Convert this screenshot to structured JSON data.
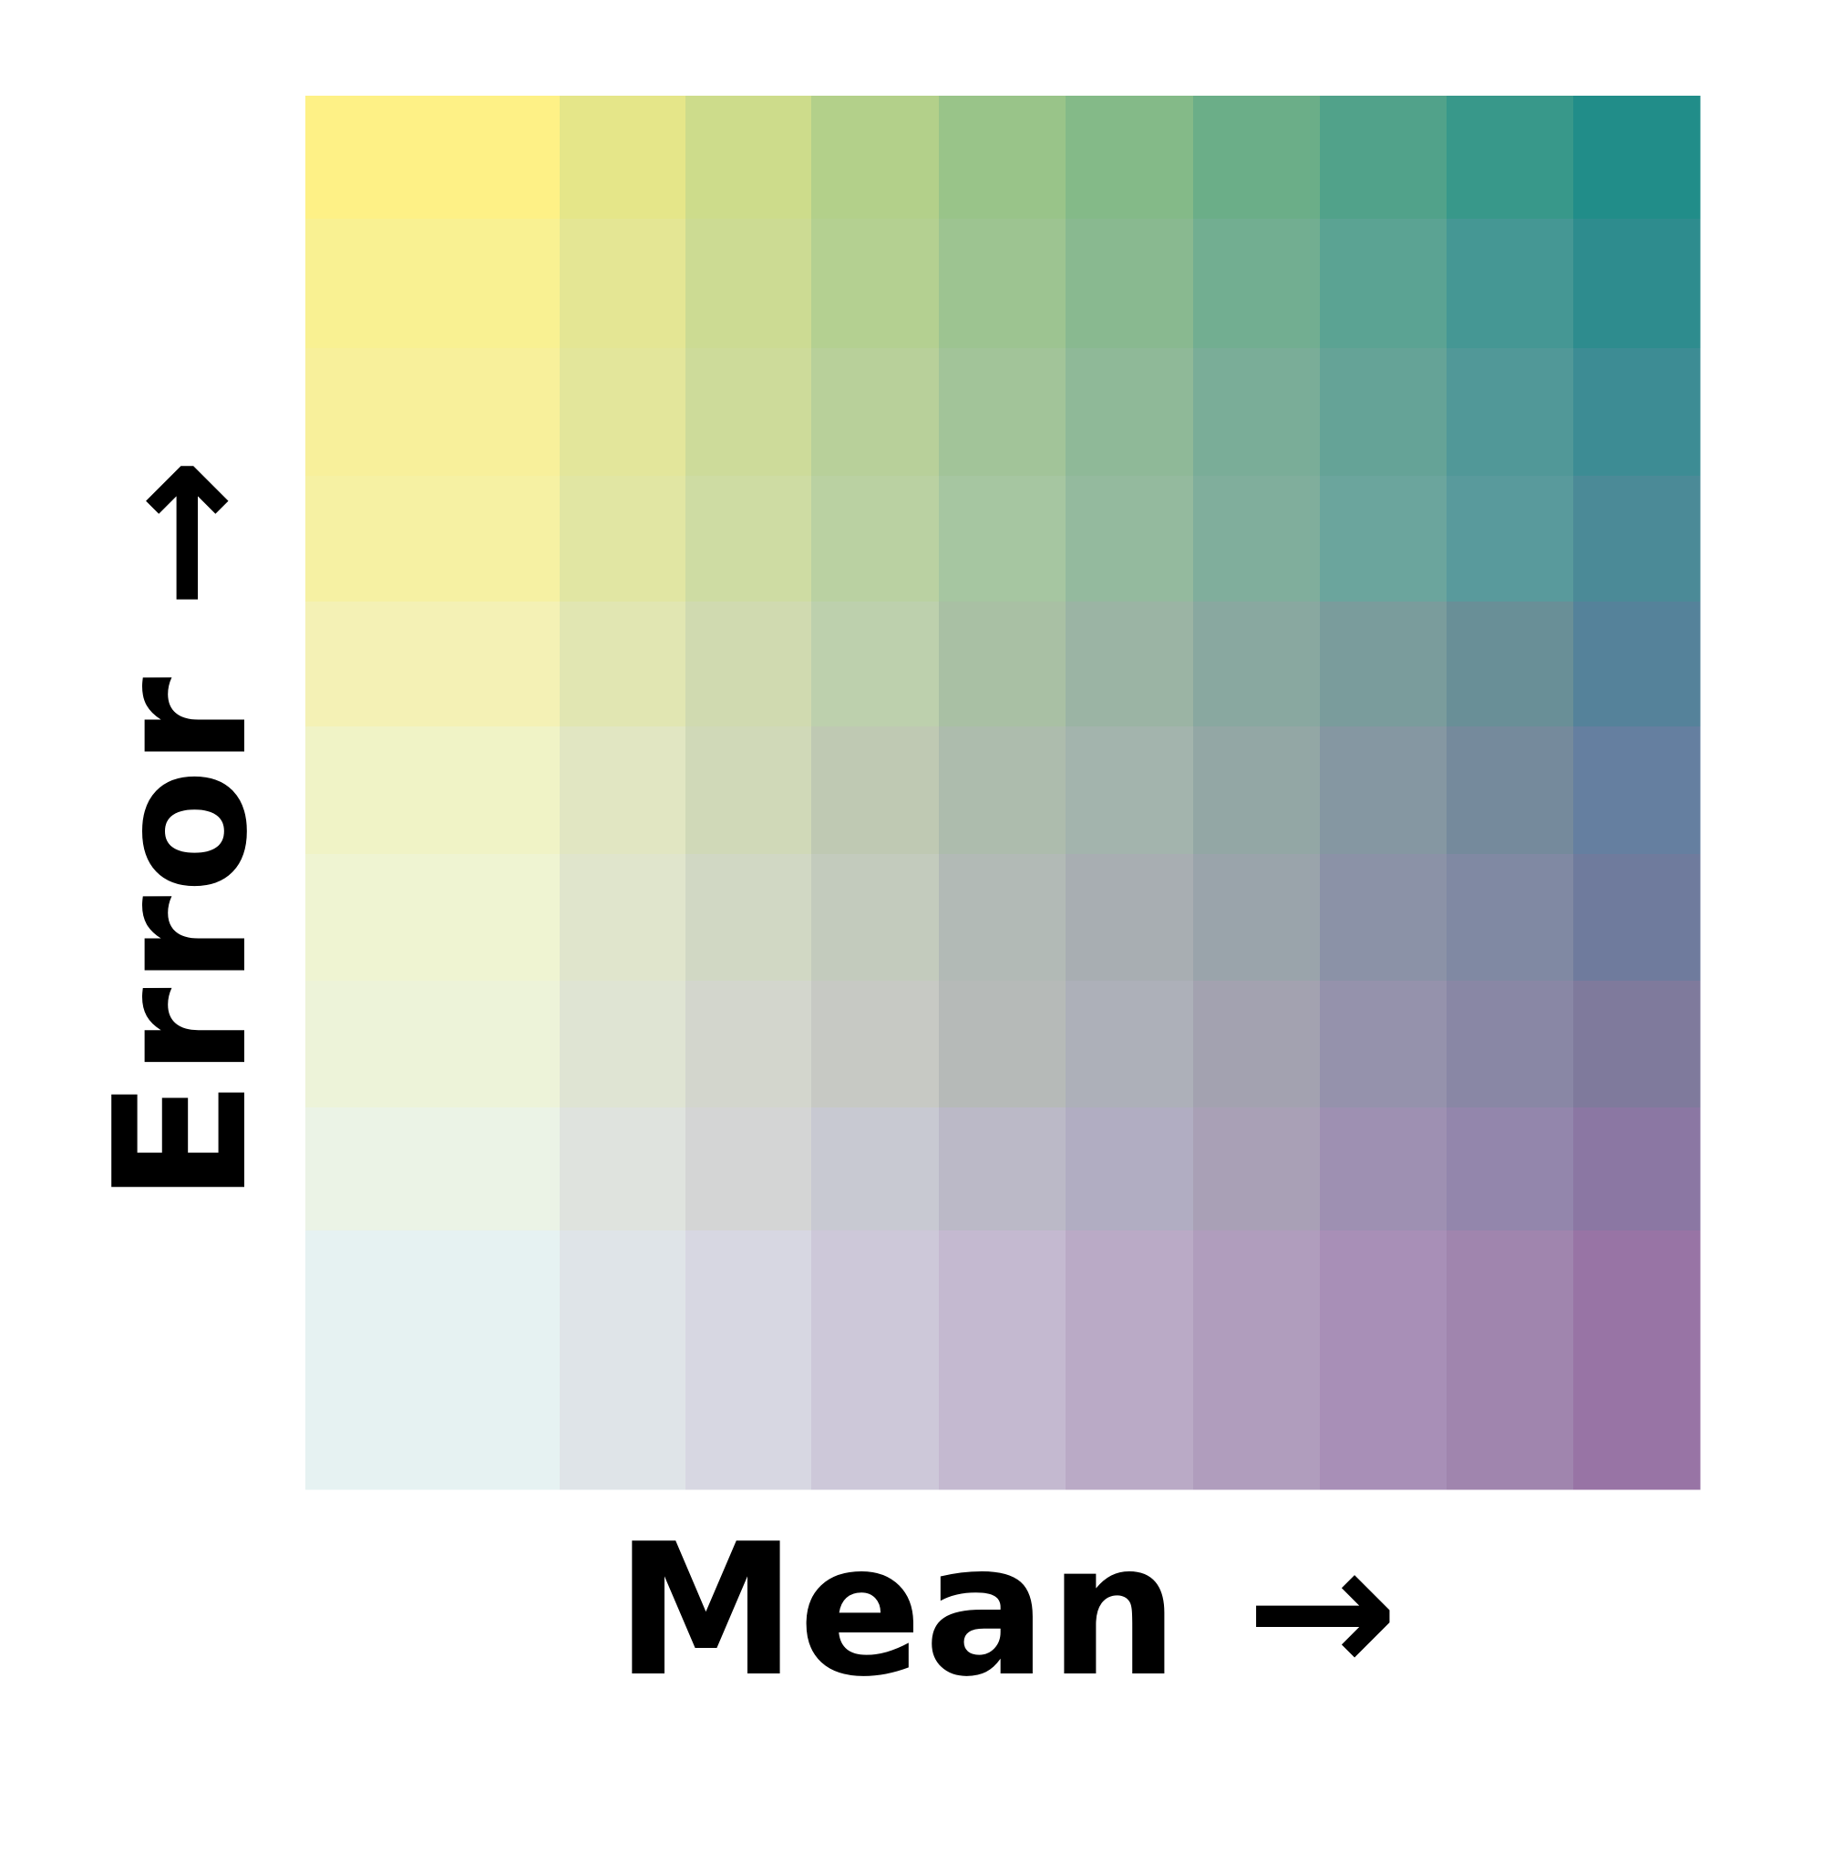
{
  "chart_data": {
    "type": "heatmap",
    "title": "",
    "xlabel": "Mean →",
    "ylabel": "Error →",
    "legend": "none",
    "grid": false,
    "columns": 10,
    "rows": 11,
    "colors": [
      [
        "#fef186",
        "#e5e689",
        "#cddc8b",
        "#b3d08a",
        "#99c489",
        "#84ba88",
        "#6bae88",
        "#51a28a",
        "#38988a",
        "#218d89"
      ],
      [
        "#f9f192",
        "#e4e694",
        "#ccdb93",
        "#b4d091",
        "#9dc491",
        "#89b990",
        "#72ae91",
        "#5ba393",
        "#459794",
        "#2e8c8e"
      ],
      [
        "#f8f09b",
        "#e3e69b",
        "#cddb9a",
        "#b8d09a",
        "#a2c499",
        "#8fb998",
        "#7aad98",
        "#65a397",
        "#519898",
        "#3d8c94"
      ],
      [
        "#f6f1a3",
        "#e1e6a3",
        "#cedca3",
        "#bad1a2",
        "#a6c6a1",
        "#94ba9e",
        "#80ae9c",
        "#6ba59d",
        "#599a9c",
        "#4b8a97"
      ],
      [
        "#f4f1b5",
        "#e1e6b2",
        "#d0dab0",
        "#bdd0ad",
        "#a9c0a4",
        "#9bb4a4",
        "#89a8a0",
        "#7a9c9c",
        "#698f97",
        "#55829a"
      ],
      [
        "#f0f3c6",
        "#e1e6c2",
        "#d0d9b8",
        "#bfc9b3",
        "#adbcad",
        "#a3b4ad",
        "#93a7a5",
        "#8597a2",
        "#758a9c",
        "#657fa0"
      ],
      [
        "#eff4d2",
        "#e0e5cc",
        "#d1d8c4",
        "#c3cbbd",
        "#b2bab6",
        "#a8aeb2",
        "#9aa4ab",
        "#8b92a7",
        "#8089a3",
        "#6f7b9d"
      ],
      [
        "#edf3d9",
        "#dfe4d3",
        "#d3d6cd",
        "#c7c9c4",
        "#b6bab8",
        "#adb0b9",
        "#a3a2b0",
        "#9592ac",
        "#8987a5",
        "#7f7a9c"
      ],
      [
        "#ebf3e6",
        "#dfe3de",
        "#d4d5d5",
        "#c8c9d2",
        "#bbb9c7",
        "#b1adc2",
        "#a9a0b6",
        "#9e90b2",
        "#9386ac",
        "#8b77a3"
      ],
      [
        "#e6f2f2",
        "#dfe4e8",
        "#d7d7e2",
        "#cdc8d9",
        "#c4b9d0",
        "#baaac6",
        "#b09dbd",
        "#a88fb7",
        "#a085ae",
        "#9874a5"
      ],
      [
        "#e6f2f2",
        "#dfe4e8",
        "#d7d7e2",
        "#cdc8d9",
        "#c4b9d0",
        "#baaac6",
        "#b09dbd",
        "#a88fb7",
        "#a085ae",
        "#9874a5"
      ]
    ]
  }
}
